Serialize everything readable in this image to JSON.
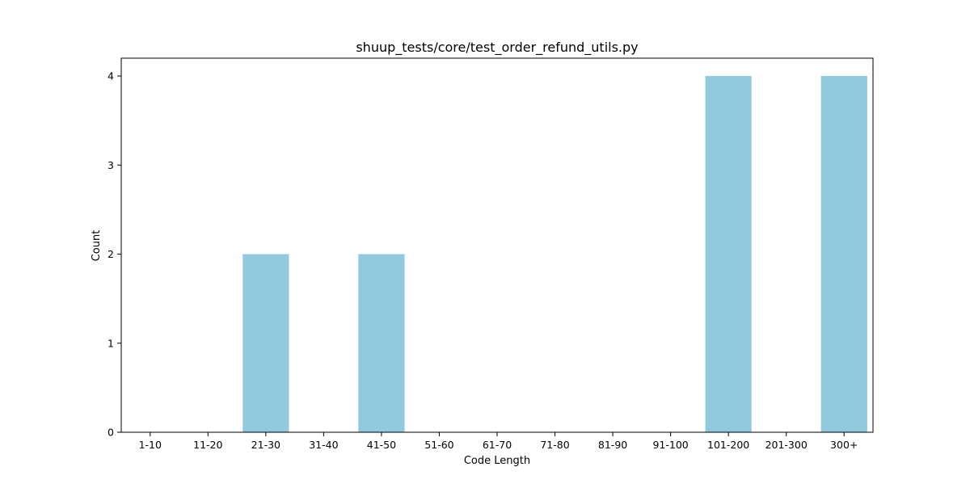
{
  "chart_data": {
    "type": "bar",
    "title": "shuup_tests/core/test_order_refund_utils.py",
    "xlabel": "Code Length",
    "ylabel": "Count",
    "categories": [
      "1-10",
      "11-20",
      "21-30",
      "31-40",
      "41-50",
      "51-60",
      "61-70",
      "71-80",
      "81-90",
      "91-100",
      "101-200",
      "201-300",
      "300+"
    ],
    "values": [
      0,
      0,
      2,
      0,
      2,
      0,
      0,
      0,
      0,
      0,
      4,
      0,
      4
    ],
    "ylim": [
      0,
      4.2
    ],
    "yticks": [
      0,
      1,
      2,
      3,
      4
    ],
    "bar_color": "#92c9dd",
    "grid": false,
    "legend": "none"
  }
}
